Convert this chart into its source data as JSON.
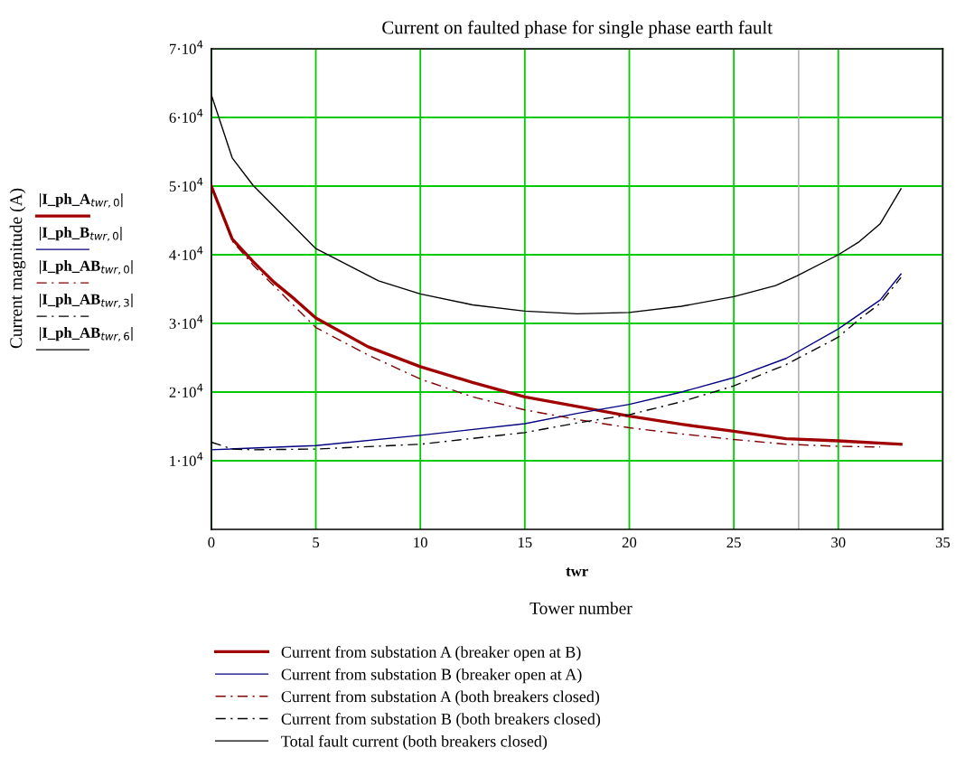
{
  "chart_data": {
    "type": "line",
    "title": "Current on faulted phase for single phase earth fault",
    "xlabel": "twr",
    "annotations": [
      "Tower number",
      "Current magnitude (A)",
      "|I_ph_A$_{twr,0}$|",
      "|I_ph_B$_{twr,0}$|",
      "|I_ph_AB$_{twr,0}$|",
      "|I_ph_AB$_{twr,3}$|",
      "|I_ph_AB$_{twr,6}$|"
    ],
    "xlim": [
      0,
      35
    ],
    "xticks": [
      0,
      5,
      10,
      15,
      20,
      25,
      30,
      35
    ],
    "ylim": [
      0,
      70000
    ],
    "yticks": [
      {
        "value": 10000,
        "label": "1·10$^{4}$"
      },
      {
        "value": 20000,
        "label": "2·10$^{4}$"
      },
      {
        "value": 30000,
        "label": "3·10$^{4}$"
      },
      {
        "value": 40000,
        "label": "4·10$^{4}$"
      },
      {
        "value": 50000,
        "label": "5·10$^{4}$"
      },
      {
        "value": 60000,
        "label": "6·10$^{4}$"
      },
      {
        "value": 70000,
        "label": "7·10$^{4}$"
      }
    ],
    "grid": true,
    "legend": "bottom",
    "ref_lines": [
      {
        "axis": "x",
        "value": 28.1,
        "label": null,
        "color": "#b4b4b4"
      }
    ],
    "series": [
      {
        "name": "Current from substation A (breaker open at B)",
        "color": "#a00000",
        "line_style": "solid",
        "x": [
          0,
          1,
          2,
          3,
          4,
          5,
          7.5,
          10,
          12.5,
          15,
          17.5,
          20,
          22.5,
          25,
          27.5,
          30,
          33
        ],
        "values": [
          50000,
          42300,
          39000,
          36000,
          33500,
          30800,
          26600,
          23700,
          21400,
          19300,
          17900,
          16500,
          15300,
          14300,
          13200,
          12900,
          12400
        ]
      },
      {
        "name": "Current from substation B (breaker open at A)",
        "color": "#000080",
        "line_style": "solid",
        "x": [
          0,
          5,
          10,
          15,
          17.5,
          20,
          22.5,
          25,
          27.5,
          30,
          31,
          32,
          33
        ],
        "values": [
          11600,
          12200,
          13700,
          15400,
          16900,
          18200,
          20000,
          22100,
          24900,
          29200,
          31300,
          33400,
          37200
        ]
      },
      {
        "name": "Current from substation A (both breakers closed)",
        "color": "#800000",
        "line_style": "dashdot",
        "x": [
          0,
          1,
          2,
          5,
          7.5,
          10,
          12.5,
          15,
          17.5,
          20,
          22.5,
          25,
          27.5,
          30,
          32
        ],
        "values": [
          50000,
          42000,
          38500,
          29400,
          25400,
          21900,
          19300,
          17400,
          16000,
          14800,
          13900,
          13100,
          12400,
          12100,
          12000
        ]
      },
      {
        "name": "Current from substation B (both breakers closed)",
        "color": "#000000",
        "line_style": "dashdot",
        "x": [
          0,
          1,
          2,
          5,
          10,
          15,
          17.5,
          20,
          22.5,
          25,
          27.5,
          30,
          31,
          32,
          33
        ],
        "values": [
          12700,
          11700,
          11600,
          11700,
          12400,
          14100,
          15500,
          16700,
          18600,
          20900,
          24000,
          28000,
          30600,
          32900,
          36700
        ]
      },
      {
        "name": "Total fault current (both breakers closed)",
        "color": "#000000",
        "line_style": "solid",
        "x": [
          0,
          1,
          2,
          5,
          8,
          10,
          12.5,
          15,
          17.5,
          20,
          22.5,
          25,
          27,
          28,
          30,
          31,
          32,
          33
        ],
        "values": [
          63300,
          54100,
          50100,
          40900,
          36200,
          34300,
          32700,
          31800,
          31400,
          31600,
          32500,
          33900,
          35500,
          36900,
          40000,
          41900,
          44500,
          49600
        ]
      }
    ]
  }
}
